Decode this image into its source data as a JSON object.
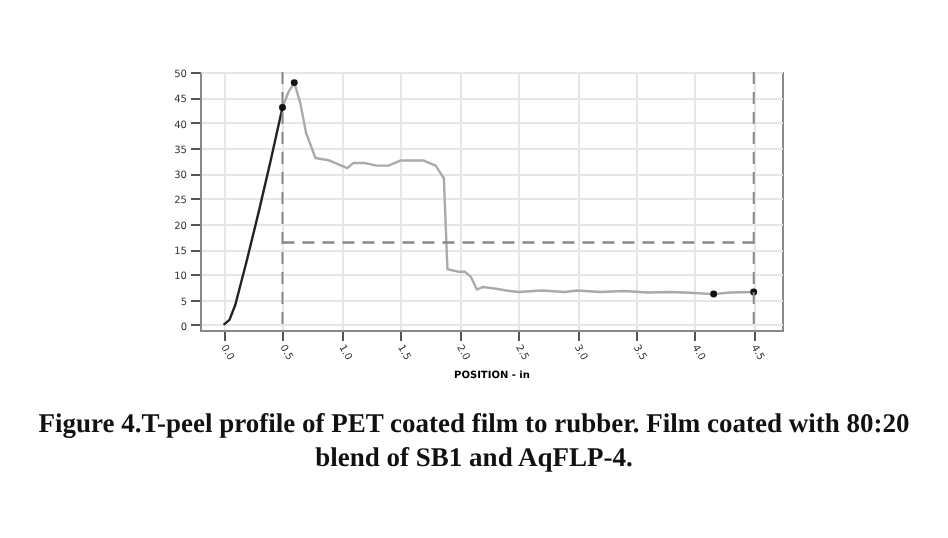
{
  "chart_data": {
    "type": "line",
    "xlabel": "POSITION - in",
    "xlim": [
      -0.2,
      4.74
    ],
    "ylim": [
      -1,
      50
    ],
    "xticks": [
      {
        "value": 0,
        "label": "0.0"
      },
      {
        "value": 0.5,
        "label": "0.5"
      },
      {
        "value": 1,
        "label": "1.0"
      },
      {
        "value": 1.5,
        "label": "1.5"
      },
      {
        "value": 2,
        "label": "2.0"
      },
      {
        "value": 2.5,
        "label": "2.5"
      },
      {
        "value": 3,
        "label": "3.0"
      },
      {
        "value": 3.5,
        "label": "3.5"
      },
      {
        "value": 4,
        "label": "4.0"
      },
      {
        "value": 4.5,
        "label": "4.5"
      }
    ],
    "yticks": [
      0,
      5,
      10,
      15,
      20,
      25,
      30,
      35,
      40,
      45,
      50
    ],
    "grid": true,
    "series": [
      {
        "color": "#222222",
        "x": [
          0,
          0.05,
          0.1,
          0.2,
          0.3,
          0.4,
          0.5
        ],
        "values": [
          0,
          1,
          4,
          13,
          22.5,
          32.5,
          43
        ]
      },
      {
        "color": "#aaaaaa",
        "x": [
          0.5,
          0.55,
          0.6,
          0.65,
          0.7,
          0.78,
          0.9,
          1.0,
          1.05,
          1.1,
          1.2,
          1.3,
          1.4,
          1.5,
          1.6,
          1.7,
          1.8,
          1.87,
          1.9,
          2.0,
          2.05,
          2.1,
          2.15,
          2.2,
          2.3,
          2.4,
          2.5,
          2.7,
          2.9,
          3.0,
          3.2,
          3.4,
          3.6,
          3.8,
          4.0,
          4.16,
          4.3,
          4.5
        ],
        "values": [
          43,
          46,
          47.9,
          44,
          38,
          33,
          32.5,
          31.5,
          31,
          32,
          32,
          31.5,
          31.5,
          32.5,
          32.5,
          32.5,
          31.5,
          29,
          11,
          10.5,
          10.5,
          9.5,
          7,
          7.5,
          7.2,
          6.8,
          6.5,
          6.8,
          6.5,
          6.8,
          6.5,
          6.7,
          6.4,
          6.5,
          6.3,
          6.1,
          6.4,
          6.5
        ]
      },
      {
        "color": "#888888",
        "line_style": "dashed",
        "x": [
          0.5,
          4.5
        ],
        "values": [
          16.3,
          16.3
        ]
      },
      {
        "type": "scatter",
        "color": "#111111",
        "marker": "circle",
        "x": [
          0.5,
          0.6,
          4.16,
          4.5
        ],
        "values": [
          43,
          47.9,
          6.1,
          6.5
        ]
      }
    ],
    "ref_lines": [
      {
        "axis": "x",
        "value": 0.5,
        "color": "#888888",
        "line_style": "dashed"
      },
      {
        "axis": "x",
        "value": 4.5,
        "color": "#888888",
        "line_style": "dashed"
      }
    ],
    "annotations": [
      "Figure 4.T-peel profile of PET coated film to rubber.  Film coated with 80:20 blend of SB1 and AqFLP-4."
    ]
  }
}
